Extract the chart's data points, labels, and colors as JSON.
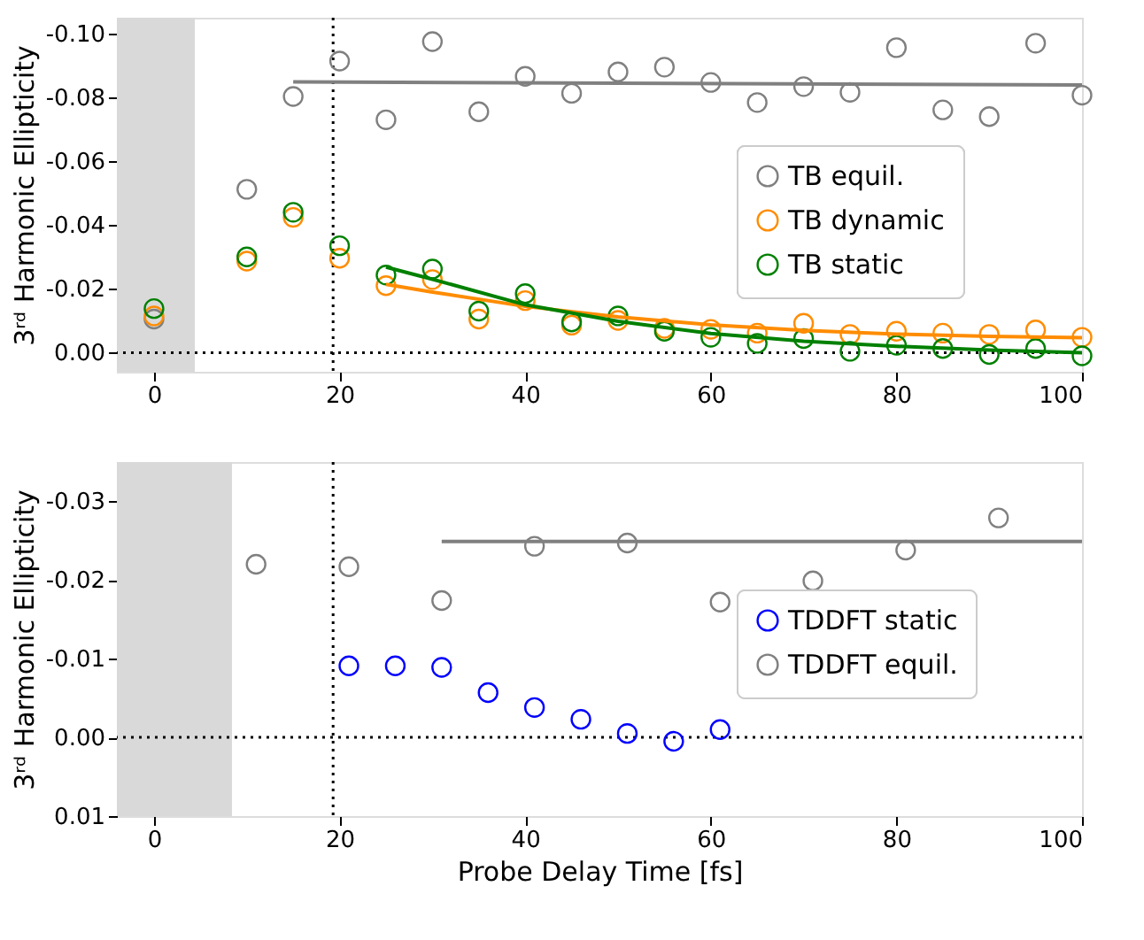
{
  "chart_data": [
    {
      "type": "scatter",
      "ylabel": "3ʳᵈ Harmonic Ellipticity",
      "marker": "circle",
      "legend": "right",
      "grid": false,
      "x": [
        0,
        10,
        15,
        20,
        25,
        30,
        35,
        40,
        45,
        50,
        55,
        60,
        65,
        70,
        75,
        80,
        85,
        90,
        95,
        100
      ],
      "xlim": [
        -4,
        100
      ],
      "xticks": [
        0,
        20,
        40,
        60,
        80,
        100
      ],
      "ylim": [
        0.006,
        -0.105
      ],
      "yticks": [
        {
          "value": 0,
          "label": "0.00"
        },
        {
          "value": -0.02,
          "label": "-0.02"
        },
        {
          "value": -0.04,
          "label": "-0.04"
        },
        {
          "value": -0.06,
          "label": "-0.06"
        },
        {
          "value": -0.08,
          "label": "-0.08"
        },
        {
          "value": -0.1,
          "label": "-0.10"
        }
      ],
      "series": [
        {
          "name": "TB equil.",
          "color": "#808080",
          "values": [
            -0.0105,
            -0.0512,
            -0.0803,
            -0.0914,
            -0.073,
            -0.0975,
            -0.0755,
            -0.0866,
            -0.0813,
            -0.088,
            -0.0895,
            -0.0847,
            -0.0784,
            -0.0834,
            -0.0816,
            -0.0956,
            -0.0761,
            -0.074,
            -0.097,
            -0.0807
          ]
        },
        {
          "name": "TB dynamic",
          "color": "#ff8c00",
          "values": [
            -0.0115,
            -0.0287,
            -0.0424,
            -0.0296,
            -0.021,
            -0.0229,
            -0.0105,
            -0.0163,
            -0.0086,
            -0.0101,
            -0.0076,
            -0.0073,
            -0.0061,
            -0.0092,
            -0.0057,
            -0.0067,
            -0.0061,
            -0.0057,
            -0.0071,
            -0.0048
          ]
        },
        {
          "name": "TB static",
          "color": "#008000",
          "values": [
            -0.0138,
            -0.03,
            -0.044,
            -0.0335,
            -0.0243,
            -0.0262,
            -0.013,
            -0.0185,
            -0.0096,
            -0.0115,
            -0.0067,
            -0.0048,
            -0.0029,
            -0.0044,
            -0.0004,
            -0.0023,
            -0.0013,
            0.0006,
            -0.0013,
            0.001
          ]
        },
        {
          "type": "line",
          "marker": "none",
          "color": "#808080",
          "x": [
            15,
            100
          ],
          "values": [
            -0.0849,
            -0.0839
          ]
        },
        {
          "type": "line",
          "marker": "none",
          "color": "#ff8c00",
          "x": [
            25,
            30,
            40,
            50,
            60,
            70,
            80,
            90,
            100
          ],
          "values": [
            -0.0214,
            -0.019,
            -0.0145,
            -0.0112,
            -0.0087,
            -0.007,
            -0.0058,
            -0.0051,
            -0.0047
          ]
        },
        {
          "type": "line",
          "marker": "none",
          "color": "#008000",
          "x": [
            25,
            30,
            40,
            50,
            60,
            70,
            80,
            90,
            100
          ],
          "values": [
            -0.0268,
            -0.023,
            -0.015,
            -0.0098,
            -0.006,
            -0.0036,
            -0.002,
            -0.0008,
            0.0
          ]
        }
      ],
      "ref_lines": [
        {
          "axis": "x",
          "value": 19.3,
          "color": "#000000",
          "line_style": "dotted"
        },
        {
          "axis": "y",
          "value": 0,
          "color": "#000000",
          "line_style": "dotted"
        }
      ],
      "bands": [
        {
          "axis": "x",
          "from": -4,
          "to": 4.4,
          "color": "#d9d9d9"
        }
      ]
    },
    {
      "type": "scatter",
      "xlabel": "Probe Delay Time [fs]",
      "ylabel": "3ʳᵈ Harmonic Ellipticity",
      "marker": "circle",
      "legend": "right",
      "grid": false,
      "xlim": [
        -4,
        100
      ],
      "xticks": [
        0,
        20,
        40,
        60,
        80,
        100
      ],
      "ylim": [
        0.01,
        -0.035
      ],
      "yticks": [
        {
          "value": 0.01,
          "label": "0.01"
        },
        {
          "value": 0,
          "label": "0.00"
        },
        {
          "value": -0.01,
          "label": "-0.01"
        },
        {
          "value": -0.02,
          "label": "-0.02"
        },
        {
          "value": -0.03,
          "label": "-0.03"
        }
      ],
      "series": [
        {
          "name": "TDDFT static",
          "color": "#0000ff",
          "x": [
            21,
            26,
            31,
            36,
            41,
            46,
            51,
            56,
            61
          ],
          "values": [
            -0.0091,
            -0.0091,
            -0.0089,
            -0.0057,
            -0.0038,
            -0.0023,
            -0.0005,
            0.0005,
            -0.001
          ]
        },
        {
          "name": "TDDFT equil.",
          "color": "#808080",
          "x": [
            11,
            21,
            31,
            41,
            51,
            61,
            71,
            81,
            91
          ],
          "values": [
            -0.022,
            -0.0217,
            -0.0174,
            -0.0243,
            -0.0247,
            -0.0172,
            -0.0199,
            -0.0238,
            -0.0279
          ]
        },
        {
          "type": "line",
          "marker": "none",
          "color": "#808080",
          "x": [
            31,
            100
          ],
          "values": [
            -0.0249,
            -0.0249
          ]
        }
      ],
      "ref_lines": [
        {
          "axis": "x",
          "value": 19.3,
          "color": "#000000",
          "line_style": "dotted"
        },
        {
          "axis": "y",
          "value": 0,
          "color": "#000000",
          "line_style": "dotted"
        }
      ],
      "bands": [
        {
          "axis": "x",
          "from": -4,
          "to": 8.4,
          "color": "#d9d9d9"
        }
      ]
    }
  ]
}
